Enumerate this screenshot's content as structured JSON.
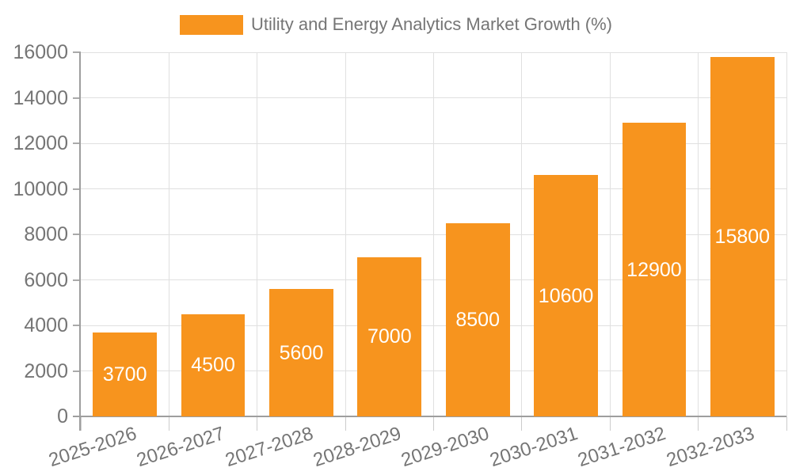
{
  "legend": {
    "label": "Utility and Energy Analytics Market Growth (%)",
    "swatch_color": "#F7941E"
  },
  "chart_data": {
    "type": "bar",
    "title": "Utility and Energy Analytics Market Growth (%)",
    "categories": [
      "2025-2026",
      "2026-2027",
      "2027-2028",
      "2028-2029",
      "2029-2030",
      "2030-2031",
      "2031-2032",
      "2032-2033"
    ],
    "values": [
      3700,
      4500,
      5600,
      7000,
      8500,
      10600,
      12900,
      15800
    ],
    "xlabel": "",
    "ylabel": "",
    "ylim": [
      0,
      16000
    ],
    "yticks": [
      0,
      2000,
      4000,
      6000,
      8000,
      10000,
      12000,
      14000,
      16000
    ],
    "grid": true,
    "legend_position": "top-center",
    "value_labels": "inside-center",
    "value_label_color": "#FFFFFF",
    "bar_color": "#F7941E",
    "axis_color": "#9E9E9E",
    "grid_color": "#E0E0E0",
    "text_color": "#757575",
    "xtick_rotation_deg": -18
  }
}
